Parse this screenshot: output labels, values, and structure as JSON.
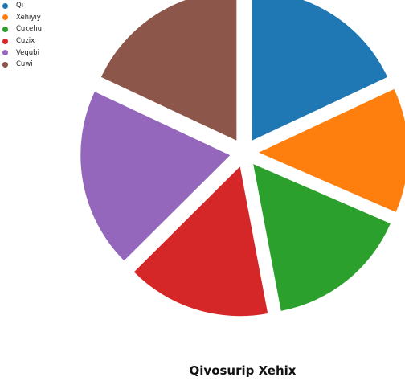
{
  "chart_data": {
    "type": "pie",
    "title": "Qivosurip Xehix",
    "labels": [
      "Qi",
      "Xehiyiy",
      "Cucehu",
      "Cuzix",
      "Vequbi",
      "Cuwi"
    ],
    "values": [
      17.9,
      13.4,
      15.4,
      15.4,
      19.3,
      17.9
    ],
    "colors": [
      "#1f77b4",
      "#ff7f0e",
      "#2ca02c",
      "#d62728",
      "#9467bd",
      "#8c564b"
    ],
    "legend_position": "top-left",
    "exploded": true,
    "start_angle_deg": 0,
    "direction": "clockwise"
  }
}
